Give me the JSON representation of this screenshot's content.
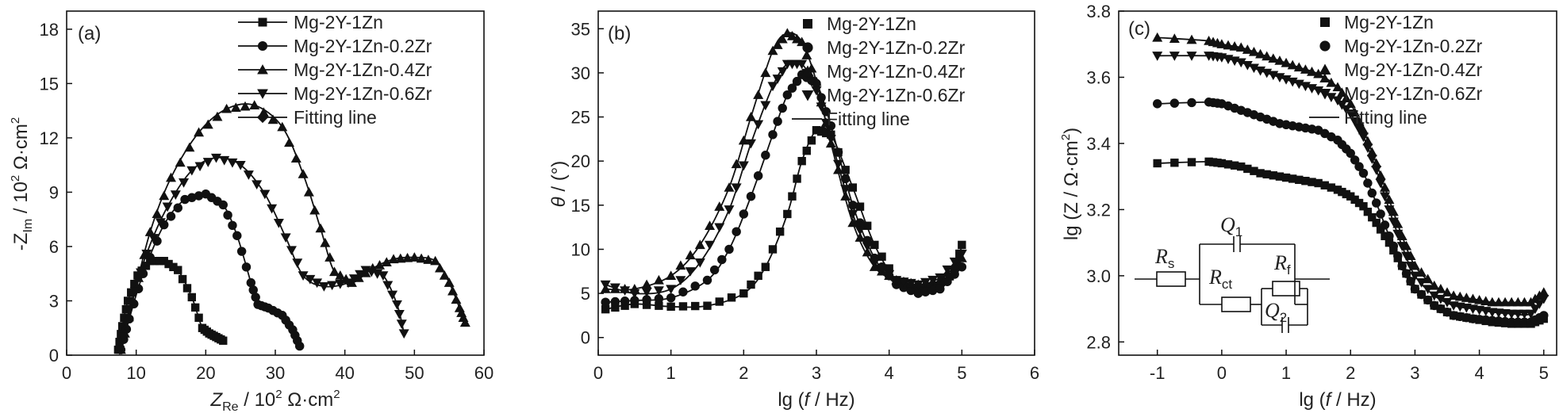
{
  "colors": {
    "ink": "#111111",
    "text": "#222222"
  },
  "chart_data": [
    {
      "id": "a",
      "type": "scatter",
      "panel_label": "(a)",
      "xlabel_main": "Z",
      "xlabel_sub": "Re",
      "xlabel_units": " / 10",
      "xlabel_exp": "2",
      "xlabel_tail": " Ω·cm",
      "xlabel_tail_exp": "2",
      "ylabel_main": "-Z",
      "ylabel_sub": "Im",
      "ylabel_units": " / 10",
      "ylabel_exp": "2",
      "ylabel_tail": " Ω·cm",
      "ylabel_tail_exp": "2",
      "xlim": [
        0,
        60
      ],
      "ylim": [
        0,
        19
      ],
      "xticks": [
        0,
        10,
        20,
        30,
        40,
        50,
        60
      ],
      "yticks": [
        0,
        3,
        6,
        9,
        12,
        15,
        18
      ],
      "legend": [
        "Mg-2Y-1Zn",
        "Mg-2Y-1Zn-0.2Zr",
        "Mg-2Y-1Zn-0.4Zr",
        "Mg-2Y-1Zn-0.6Zr",
        "Fitting line"
      ],
      "series": [
        {
          "name": "Mg-2Y-1Zn",
          "marker": "square",
          "x": [
            7.4,
            8.0,
            8.8,
            10.2,
            12.0,
            14.0,
            16.0,
            18.0,
            19.5,
            20.5,
            21.5,
            22.5
          ],
          "y": [
            0.3,
            1.6,
            3.0,
            4.4,
            5.2,
            5.2,
            4.7,
            3.2,
            1.5,
            1.2,
            1.0,
            0.8
          ]
        },
        {
          "name": "Mg-2Y-1Zn-0.2Zr",
          "marker": "circle",
          "x": [
            7.8,
            9.0,
            11.0,
            14.0,
            17.0,
            20.0,
            22.5,
            24.5,
            26.5,
            27.5,
            29.0,
            31.0,
            32.5,
            33.5
          ],
          "y": [
            0.3,
            2.0,
            4.5,
            7.2,
            8.6,
            8.9,
            8.3,
            6.6,
            4.0,
            2.8,
            2.6,
            2.2,
            1.4,
            0.5
          ]
        },
        {
          "name": "Mg-2Y-1Zn-0.4Zr",
          "marker": "triangle-up",
          "x": [
            7.8,
            9.5,
            12.0,
            15.0,
            19.0,
            23.0,
            27.0,
            31.0,
            34.0,
            36.5,
            38.5,
            41.0,
            44.0,
            47.0,
            50.0,
            53.0,
            55.0,
            56.5,
            57.3
          ],
          "y": [
            0.3,
            3.0,
            6.8,
            9.8,
            12.3,
            13.6,
            13.8,
            12.6,
            10.0,
            7.0,
            4.6,
            4.0,
            4.8,
            5.3,
            5.4,
            5.2,
            4.0,
            2.6,
            1.8
          ]
        },
        {
          "name": "Mg-2Y-1Zn-0.6Zr",
          "marker": "triangle-down",
          "x": [
            7.6,
            9.0,
            11.5,
            14.5,
            18.0,
            21.5,
            25.0,
            28.5,
            31.5,
            34.0,
            37.0,
            40.5,
            43.0,
            45.5,
            47.5,
            48.5
          ],
          "y": [
            0.3,
            2.5,
            5.6,
            8.2,
            10.2,
            10.9,
            10.5,
            8.9,
            6.5,
            4.4,
            3.8,
            4.0,
            4.7,
            4.4,
            2.8,
            1.2
          ]
        }
      ]
    },
    {
      "id": "b",
      "type": "scatter",
      "panel_label": "(b)",
      "xlabel_main": "lg (",
      "xlabel_italic": "f",
      "xlabel_tail": " / Hz)",
      "ylabel_italic": "θ",
      "ylabel_tail": " / (°)",
      "xlim": [
        0,
        6
      ],
      "ylim": [
        -2,
        37
      ],
      "xticks": [
        0,
        1,
        2,
        3,
        4,
        5,
        6
      ],
      "yticks": [
        0,
        5,
        10,
        15,
        20,
        25,
        30,
        35
      ],
      "legend": [
        "Mg-2Y-1Zn",
        "Mg-2Y-1Zn-0.2Zr",
        "Mg-2Y-1Zn-0.4Zr",
        "Mg-2Y-1Zn-0.6Zr",
        "Fitting line"
      ],
      "series": [
        {
          "name": "Mg-2Y-1Zn",
          "marker": "square",
          "x": [
            0.1,
            0.5,
            1.0,
            1.5,
            2.0,
            2.3,
            2.6,
            2.8,
            3.0,
            3.2,
            3.5,
            3.8,
            4.1,
            4.4,
            4.7,
            4.9,
            5.0
          ],
          "y": [
            3.2,
            3.8,
            3.5,
            3.6,
            5.0,
            8.0,
            14.0,
            20.0,
            23.5,
            23.0,
            17.0,
            10.5,
            6.5,
            5.2,
            5.8,
            7.5,
            10.5
          ]
        },
        {
          "name": "Mg-2Y-1Zn-0.2Zr",
          "marker": "circle",
          "x": [
            0.1,
            0.5,
            1.0,
            1.5,
            1.8,
            2.1,
            2.4,
            2.6,
            2.8,
            3.0,
            3.2,
            3.5,
            3.8,
            4.1,
            4.4,
            4.7,
            5.0
          ],
          "y": [
            4.0,
            4.2,
            4.5,
            6.5,
            10.0,
            16.0,
            23.0,
            27.5,
            29.8,
            28.8,
            24.0,
            15.0,
            9.0,
            6.0,
            5.0,
            5.5,
            8.0
          ]
        },
        {
          "name": "Mg-2Y-1Zn-0.4Zr",
          "marker": "triangle-up",
          "x": [
            0.1,
            0.5,
            1.0,
            1.4,
            1.8,
            2.1,
            2.4,
            2.6,
            2.8,
            3.0,
            3.2,
            3.5,
            3.8,
            4.1,
            4.4,
            4.7,
            5.0
          ],
          "y": [
            5.5,
            5.5,
            7.0,
            10.5,
            17.0,
            25.0,
            32.5,
            34.5,
            33.5,
            29.0,
            22.0,
            13.0,
            8.0,
            6.5,
            6.0,
            6.5,
            9.0
          ]
        },
        {
          "name": "Mg-2Y-1Zn-0.6Zr",
          "marker": "triangle-down",
          "x": [
            0.1,
            0.5,
            1.0,
            1.4,
            1.8,
            2.1,
            2.4,
            2.6,
            2.8,
            3.0,
            3.2,
            3.5,
            3.8,
            4.1,
            4.4,
            4.7,
            5.0
          ],
          "y": [
            6.0,
            5.0,
            5.5,
            8.5,
            14.5,
            22.0,
            28.5,
            31.0,
            31.0,
            28.0,
            22.5,
            14.0,
            8.5,
            6.5,
            6.0,
            6.8,
            9.5
          ]
        }
      ]
    },
    {
      "id": "c",
      "type": "scatter",
      "panel_label": "(c)",
      "xlabel_main": "lg (",
      "xlabel_italic": "f",
      "xlabel_tail": " / Hz)",
      "ylabel_main": "lg (Z / Ω·cm",
      "ylabel_exp": "2",
      "ylabel_tail": ")",
      "xlim": [
        -1.6,
        5.2
      ],
      "ylim": [
        2.76,
        3.8
      ],
      "xticks": [
        -1,
        0,
        1,
        2,
        3,
        4,
        5
      ],
      "yticks": [
        2.8,
        3.0,
        3.2,
        3.4,
        3.6,
        3.8
      ],
      "ytick_labels": [
        "2.8",
        "3.0",
        "3.2",
        "3.4",
        "3.6",
        "3.8"
      ],
      "legend": [
        "Mg-2Y-1Zn",
        "Mg-2Y-1Zn-0.2Zr",
        "Mg-2Y-1Zn-0.4Zr",
        "Mg-2Y-1Zn-0.6Zr",
        "Fitting line"
      ],
      "series": [
        {
          "name": "Mg-2Y-1Zn",
          "marker": "square",
          "x": [
            -1.0,
            -0.2,
            0.0,
            0.3,
            0.6,
            0.9,
            1.2,
            1.5,
            1.8,
            2.0,
            2.2,
            2.4,
            2.6,
            2.8,
            3.0,
            3.3,
            3.6,
            3.9,
            4.2,
            4.5,
            4.8,
            5.0
          ],
          "y": [
            3.34,
            3.345,
            3.34,
            3.33,
            3.31,
            3.3,
            3.29,
            3.28,
            3.26,
            3.24,
            3.21,
            3.16,
            3.1,
            3.03,
            2.96,
            2.91,
            2.88,
            2.87,
            2.86,
            2.855,
            2.855,
            2.87
          ]
        },
        {
          "name": "Mg-2Y-1Zn-0.2Zr",
          "marker": "circle",
          "x": [
            -1.0,
            -0.2,
            0.0,
            0.3,
            0.6,
            0.9,
            1.2,
            1.5,
            1.8,
            2.0,
            2.2,
            2.4,
            2.6,
            2.8,
            3.0,
            3.3,
            3.6,
            3.9,
            4.2,
            4.5,
            4.8,
            5.0
          ],
          "y": [
            3.52,
            3.525,
            3.52,
            3.5,
            3.48,
            3.46,
            3.45,
            3.44,
            3.41,
            3.37,
            3.31,
            3.22,
            3.12,
            3.03,
            2.96,
            2.91,
            2.88,
            2.87,
            2.865,
            2.86,
            2.86,
            2.88
          ]
        },
        {
          "name": "Mg-2Y-1Zn-0.4Zr",
          "marker": "triangle-up",
          "x": [
            -1.0,
            -0.2,
            0.0,
            0.3,
            0.6,
            0.9,
            1.2,
            1.5,
            1.8,
            2.0,
            2.2,
            2.4,
            2.6,
            2.8,
            3.0,
            3.3,
            3.6,
            3.9,
            4.2,
            4.5,
            4.8,
            5.0
          ],
          "y": [
            3.72,
            3.71,
            3.7,
            3.69,
            3.67,
            3.65,
            3.63,
            3.61,
            3.57,
            3.52,
            3.44,
            3.34,
            3.23,
            3.12,
            3.03,
            2.97,
            2.94,
            2.93,
            2.92,
            2.92,
            2.92,
            2.95
          ]
        },
        {
          "name": "Mg-2Y-1Zn-0.6Zr",
          "marker": "triangle-down",
          "x": [
            -1.0,
            -0.2,
            0.0,
            0.3,
            0.6,
            0.9,
            1.2,
            1.5,
            1.8,
            2.0,
            2.2,
            2.4,
            2.6,
            2.8,
            3.0,
            3.3,
            3.6,
            3.9,
            4.2,
            4.5,
            4.8,
            5.0
          ],
          "y": [
            3.665,
            3.665,
            3.66,
            3.645,
            3.62,
            3.6,
            3.58,
            3.56,
            3.53,
            3.49,
            3.42,
            3.32,
            3.2,
            3.09,
            3.0,
            2.94,
            2.91,
            2.9,
            2.89,
            2.885,
            2.885,
            2.93
          ]
        }
      ],
      "circuit": {
        "Rs": "R",
        "Rs_sub": "s",
        "Q1": "Q",
        "Q1_sub": "1",
        "Rct": "R",
        "Rct_sub": "ct",
        "Rf": "R",
        "Rf_sub": "f",
        "Q2": "Q",
        "Q2_sub": "2"
      }
    }
  ]
}
